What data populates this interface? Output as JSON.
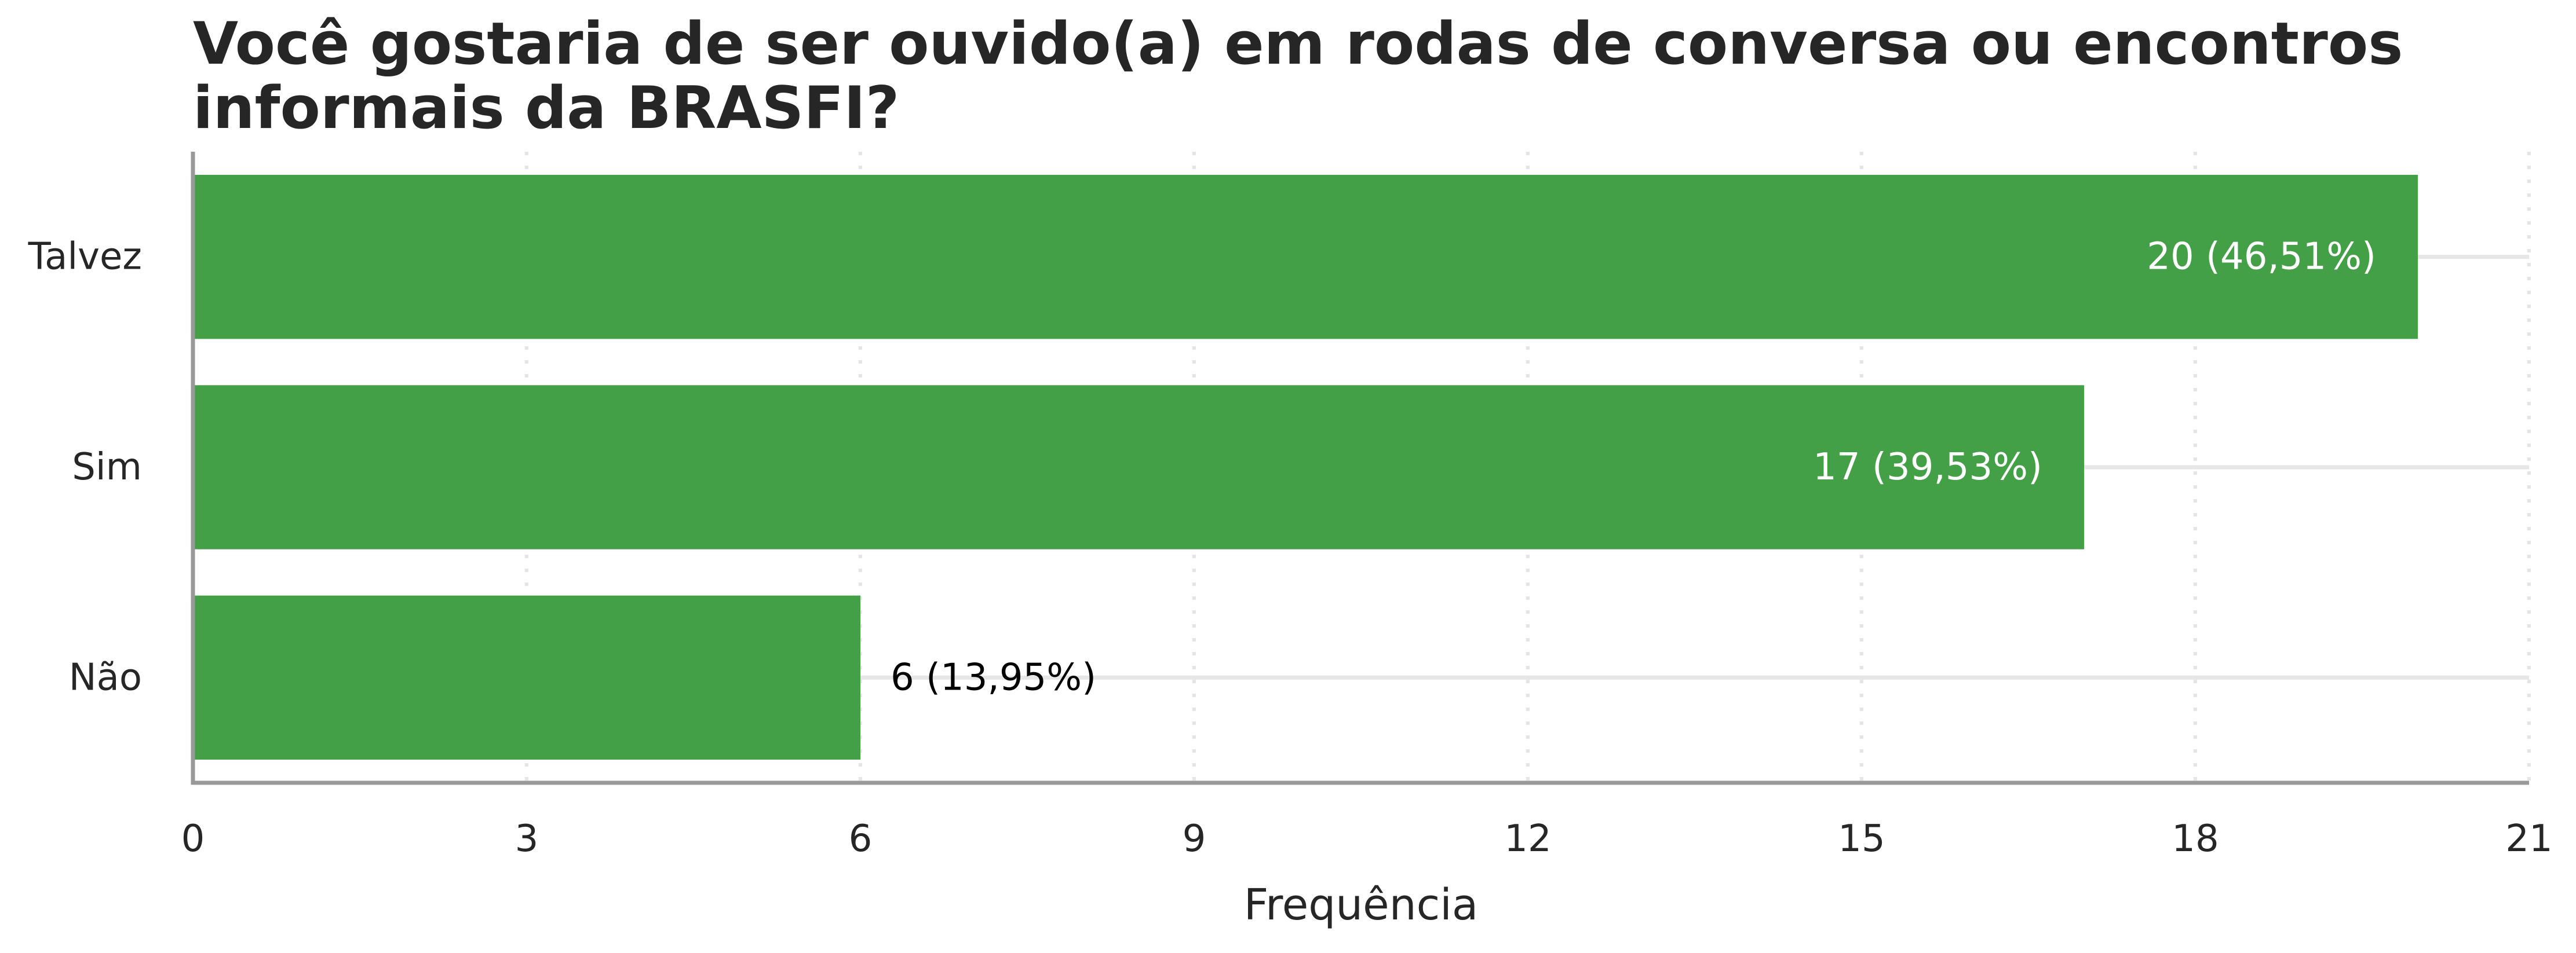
{
  "chart_data": {
    "type": "bar",
    "orientation": "horizontal",
    "title": "Você gostaria de ser ouvido(a) em rodas de conversa ou encontros informais da BRASFI?",
    "xlabel": "Frequência",
    "ylabel": "",
    "categories": [
      "Talvez",
      "Sim",
      "Não"
    ],
    "values": [
      20,
      17,
      6
    ],
    "data_labels": [
      "20 (46,51%)",
      "17 (39,53%)",
      "6 (13,95%)"
    ],
    "xlim": [
      0,
      21
    ],
    "xticks": [
      0,
      3,
      6,
      9,
      12,
      15,
      18,
      21
    ],
    "x_grid": "dotted",
    "y_grid": "solid",
    "legend": "none",
    "colors": {
      "bar": "#43a047",
      "label_inside": "#ffffff",
      "label_outside": "#000000",
      "axis": "#999999",
      "grid": "#e6e6e6"
    }
  }
}
